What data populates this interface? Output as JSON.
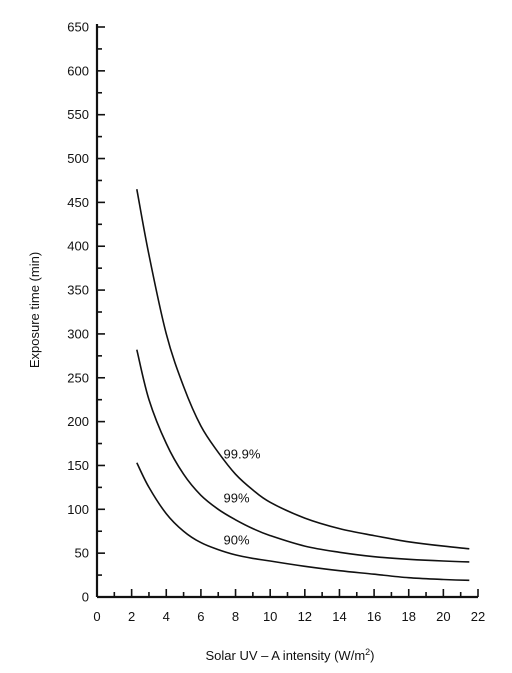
{
  "chart_data": {
    "type": "line",
    "xlabel": "Solar UV – A intensity (W/m",
    "xlabel_sup": "2",
    "xlabel_tail": ")",
    "ylabel": "Exposure time (min)",
    "xlim": [
      0,
      22
    ],
    "ylim": [
      0,
      650
    ],
    "x_ticks": [
      "0",
      "2",
      "4",
      "6",
      "8",
      "10",
      "12",
      "14",
      "16",
      "18",
      "20",
      "22"
    ],
    "y_ticks": [
      "0",
      "50",
      "100",
      "150",
      "200",
      "250",
      "300",
      "350",
      "400",
      "450",
      "500",
      "550",
      "600",
      "650"
    ],
    "series": [
      {
        "name": "99.9%",
        "x": [
          2.3,
          3,
          4,
          5,
          6,
          7,
          8,
          9,
          10,
          12,
          14,
          16,
          18,
          20,
          21.5
        ],
        "y": [
          465,
          390,
          300,
          240,
          195,
          165,
          140,
          122,
          108,
          90,
          78,
          70,
          63,
          58,
          55
        ]
      },
      {
        "name": "99%",
        "x": [
          2.3,
          3,
          4,
          5,
          6,
          7,
          8,
          9,
          10,
          12,
          14,
          16,
          18,
          20,
          21.5
        ],
        "y": [
          282,
          225,
          175,
          140,
          116,
          100,
          88,
          78,
          70,
          58,
          51,
          46,
          43,
          41,
          40
        ]
      },
      {
        "name": "90%",
        "x": [
          2.3,
          3,
          4,
          5,
          6,
          7,
          8,
          9,
          10,
          12,
          14,
          16,
          18,
          20,
          21.5
        ],
        "y": [
          153,
          125,
          95,
          75,
          62,
          54,
          48,
          44,
          41,
          35,
          30,
          26,
          22,
          20,
          19
        ]
      }
    ],
    "grid": false
  }
}
